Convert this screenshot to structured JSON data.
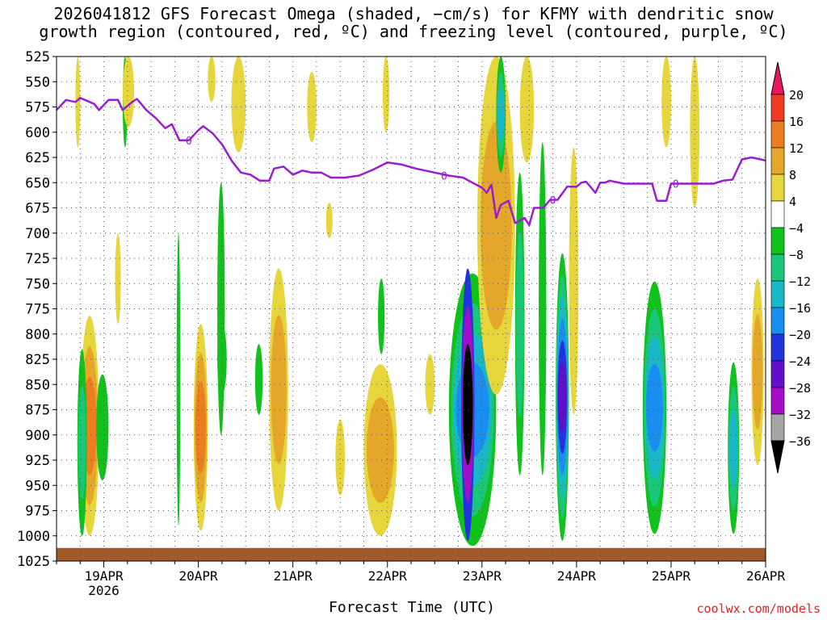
{
  "title_lines": [
    "2026041812 GFS Forecast Omega (shaded, −cm/s) for KFMY with dendritic snow",
    "growth region (contoured, red, ºC) and freezing level (contoured, purple, ºC)"
  ],
  "credit": "coolwx.com/models",
  "chart_data": {
    "type": "heatmap",
    "title": "2026041812 GFS Forecast Omega (shaded, −cm/s) for KFMY with dendritic snow growth region (contoured, red, ºC) and freezing level (contoured, purple, ºC)",
    "xlabel": "Forecast Time (UTC)",
    "ylabel": "Pressure (hPa)",
    "xlim_days": [
      -0.5,
      7.0
    ],
    "ylim": [
      1025,
      525
    ],
    "x_ticks": [
      {
        "day": 0,
        "label": "19APR",
        "sublabel": "2026"
      },
      {
        "day": 1,
        "label": "20APR"
      },
      {
        "day": 2,
        "label": "21APR"
      },
      {
        "day": 3,
        "label": "22APR"
      },
      {
        "day": 4,
        "label": "23APR"
      },
      {
        "day": 5,
        "label": "24APR"
      },
      {
        "day": 6,
        "label": "25APR"
      },
      {
        "day": 7,
        "label": "26APR"
      }
    ],
    "y_ticks": [
      525,
      550,
      575,
      600,
      625,
      650,
      675,
      700,
      725,
      750,
      775,
      800,
      825,
      850,
      875,
      900,
      925,
      950,
      975,
      1000,
      1025
    ],
    "grid": "dotted",
    "colorbar": {
      "labels": [
        "20",
        "16",
        "12",
        "8",
        "4",
        "−4",
        "−8",
        "−12",
        "−16",
        "−20",
        "−24",
        "−28",
        "−32",
        "−36"
      ],
      "colors": [
        "#e8185f",
        "#f03a24",
        "#ec7d20",
        "#e5a729",
        "#e7d53c",
        "#ffffff",
        "#10c21c",
        "#19c67a",
        "#18b8c8",
        "#1a8ef0",
        "#2133de",
        "#6010c8",
        "#a40ec8",
        "#a5a5a5",
        "#000000"
      ]
    },
    "freezing_level": {
      "color": "#9b1dd0",
      "label": "0",
      "points": [
        [
          -0.5,
          578
        ],
        [
          -0.4,
          568
        ],
        [
          -0.3,
          570
        ],
        [
          -0.25,
          566
        ],
        [
          -0.1,
          572
        ],
        [
          -0.05,
          578
        ],
        [
          0.05,
          568
        ],
        [
          0.15,
          568
        ],
        [
          0.2,
          578
        ],
        [
          0.3,
          570
        ],
        [
          0.35,
          567
        ],
        [
          0.45,
          578
        ],
        [
          0.55,
          586
        ],
        [
          0.65,
          596
        ],
        [
          0.72,
          592
        ],
        [
          0.8,
          608
        ],
        [
          0.9,
          608
        ],
        [
          1.0,
          598
        ],
        [
          1.05,
          594
        ],
        [
          1.15,
          601
        ],
        [
          1.25,
          612
        ],
        [
          1.35,
          628
        ],
        [
          1.45,
          640
        ],
        [
          1.55,
          642
        ],
        [
          1.65,
          648
        ],
        [
          1.75,
          648
        ],
        [
          1.8,
          636
        ],
        [
          1.9,
          634
        ],
        [
          2.0,
          642
        ],
        [
          2.1,
          638
        ],
        [
          2.2,
          640
        ],
        [
          2.3,
          640
        ],
        [
          2.4,
          645
        ],
        [
          2.55,
          645
        ],
        [
          2.7,
          643
        ],
        [
          2.85,
          637
        ],
        [
          3.0,
          630
        ],
        [
          3.15,
          632
        ],
        [
          3.3,
          636
        ],
        [
          3.5,
          640
        ],
        [
          3.65,
          643
        ],
        [
          3.8,
          645
        ],
        [
          3.9,
          650
        ],
        [
          4.0,
          655
        ],
        [
          4.05,
          660
        ],
        [
          4.1,
          652
        ],
        [
          4.15,
          685
        ],
        [
          4.2,
          672
        ],
        [
          4.28,
          668
        ],
        [
          4.35,
          690
        ],
        [
          4.45,
          685
        ],
        [
          4.5,
          692
        ],
        [
          4.55,
          675
        ],
        [
          4.65,
          675
        ],
        [
          4.72,
          667
        ],
        [
          4.8,
          667
        ],
        [
          4.9,
          654
        ],
        [
          5.0,
          654
        ],
        [
          5.05,
          650
        ],
        [
          5.1,
          649
        ],
        [
          5.2,
          660
        ],
        [
          5.25,
          650
        ],
        [
          5.3,
          650
        ],
        [
          5.35,
          648
        ],
        [
          5.5,
          651
        ],
        [
          5.65,
          651
        ],
        [
          5.8,
          651
        ],
        [
          5.85,
          668
        ],
        [
          5.95,
          668
        ],
        [
          6.0,
          651
        ],
        [
          6.1,
          651
        ],
        [
          6.2,
          651
        ],
        [
          6.3,
          651
        ],
        [
          6.45,
          651
        ],
        [
          6.55,
          648
        ],
        [
          6.65,
          647
        ],
        [
          6.75,
          627
        ],
        [
          6.85,
          625
        ],
        [
          7.0,
          628
        ]
      ]
    },
    "omega_cells": [
      {
        "x": -0.25,
        "x2": -0.05,
        "pTop": 782,
        "pBot": 1000,
        "levels": [
          4,
          8,
          12
        ]
      },
      {
        "x": -0.28,
        "x2": -0.18,
        "pTop": 815,
        "pBot": 1000,
        "levels": [
          -4,
          -8
        ]
      },
      {
        "x": -0.08,
        "x2": 0.05,
        "pTop": 840,
        "pBot": 945,
        "levels": [
          -4
        ]
      },
      {
        "x": 0.12,
        "x2": 0.18,
        "pTop": 700,
        "pBot": 790,
        "levels": [
          4
        ]
      },
      {
        "x": -0.3,
        "x2": -0.25,
        "pTop": 525,
        "pBot": 615,
        "levels": [
          4
        ]
      },
      {
        "x": 0.2,
        "x2": 0.25,
        "pTop": 525,
        "pBot": 615,
        "levels": [
          -4
        ]
      },
      {
        "x": 0.2,
        "x2": 0.32,
        "pTop": 525,
        "pBot": 595,
        "levels": [
          4
        ]
      },
      {
        "x": 0.95,
        "x2": 1.1,
        "pTop": 790,
        "pBot": 995,
        "levels": [
          4,
          8,
          12
        ]
      },
      {
        "x": 0.77,
        "x2": 0.81,
        "pTop": 700,
        "pBot": 990,
        "levels": [
          -4
        ]
      },
      {
        "x": 1.2,
        "x2": 1.28,
        "pTop": 650,
        "pBot": 900,
        "levels": [
          -4
        ]
      },
      {
        "x": 1.1,
        "x2": 1.18,
        "pTop": 525,
        "pBot": 570,
        "levels": [
          4
        ]
      },
      {
        "x": 1.35,
        "x2": 1.5,
        "pTop": 525,
        "pBot": 620,
        "levels": [
          4
        ]
      },
      {
        "x": 1.2,
        "x2": 1.3,
        "pTop": 790,
        "pBot": 860,
        "levels": [
          -4
        ]
      },
      {
        "x": 1.75,
        "x2": 1.95,
        "pTop": 735,
        "pBot": 975,
        "levels": [
          4,
          8
        ]
      },
      {
        "x": 1.6,
        "x2": 1.68,
        "pTop": 810,
        "pBot": 880,
        "levels": [
          -4
        ]
      },
      {
        "x": 2.15,
        "x2": 2.25,
        "pTop": 540,
        "pBot": 610,
        "levels": [
          4
        ]
      },
      {
        "x": 2.35,
        "x2": 2.42,
        "pTop": 670,
        "pBot": 705,
        "levels": [
          4
        ]
      },
      {
        "x": 2.45,
        "x2": 2.55,
        "pTop": 885,
        "pBot": 960,
        "levels": [
          4
        ]
      },
      {
        "x": 2.75,
        "x2": 3.1,
        "pTop": 830,
        "pBot": 1000,
        "levels": [
          4,
          8
        ]
      },
      {
        "x": 2.95,
        "x2": 3.02,
        "pTop": 525,
        "pBot": 600,
        "levels": [
          4
        ]
      },
      {
        "x": 2.9,
        "x2": 2.97,
        "pTop": 745,
        "pBot": 820,
        "levels": [
          -4
        ]
      },
      {
        "x": 3.4,
        "x2": 3.5,
        "pTop": 820,
        "pBot": 880,
        "levels": [
          4
        ]
      },
      {
        "x": 3.65,
        "x2": 4.15,
        "pTop": 740,
        "pBot": 1010,
        "levels": [
          -4,
          -8,
          -12,
          -16
        ]
      },
      {
        "x": 3.78,
        "x2": 3.92,
        "pTop": 735,
        "pBot": 1005,
        "levels": [
          -20,
          -28,
          -36
        ]
      },
      {
        "x": 3.95,
        "x2": 4.35,
        "pTop": 525,
        "pBot": 860,
        "levels": [
          4,
          8
        ]
      },
      {
        "x": 4.15,
        "x2": 4.25,
        "pTop": 525,
        "pBot": 640,
        "levels": [
          -4,
          -8,
          -12
        ]
      },
      {
        "x": 4.4,
        "x2": 4.55,
        "pTop": 525,
        "pBot": 630,
        "levels": [
          4
        ]
      },
      {
        "x": 4.35,
        "x2": 4.45,
        "pTop": 640,
        "pBot": 940,
        "levels": [
          -4,
          -8
        ]
      },
      {
        "x": 4.6,
        "x2": 4.68,
        "pTop": 610,
        "pBot": 940,
        "levels": [
          -4
        ]
      },
      {
        "x": 4.78,
        "x2": 4.92,
        "pTop": 720,
        "pBot": 1005,
        "levels": [
          -4,
          -8,
          -12,
          -16,
          -20,
          -24
        ]
      },
      {
        "x": 4.92,
        "x2": 5.02,
        "pTop": 615,
        "pBot": 880,
        "levels": [
          4
        ]
      },
      {
        "x": 5.7,
        "x2": 5.95,
        "pTop": 748,
        "pBot": 998,
        "levels": [
          -4,
          -8,
          -12,
          -16
        ]
      },
      {
        "x": 5.9,
        "x2": 6.0,
        "pTop": 525,
        "pBot": 615,
        "levels": [
          4
        ]
      },
      {
        "x": 6.2,
        "x2": 6.3,
        "pTop": 525,
        "pBot": 675,
        "levels": [
          4
        ]
      },
      {
        "x": 6.6,
        "x2": 6.72,
        "pTop": 828,
        "pBot": 998,
        "levels": [
          -4,
          -8,
          -12
        ]
      },
      {
        "x": 6.85,
        "x2": 6.98,
        "pTop": 745,
        "pBot": 930,
        "levels": [
          4,
          8
        ]
      }
    ],
    "terrain": {
      "color": "#a05a2c",
      "pTop": 1012,
      "pBot": 1025
    }
  }
}
